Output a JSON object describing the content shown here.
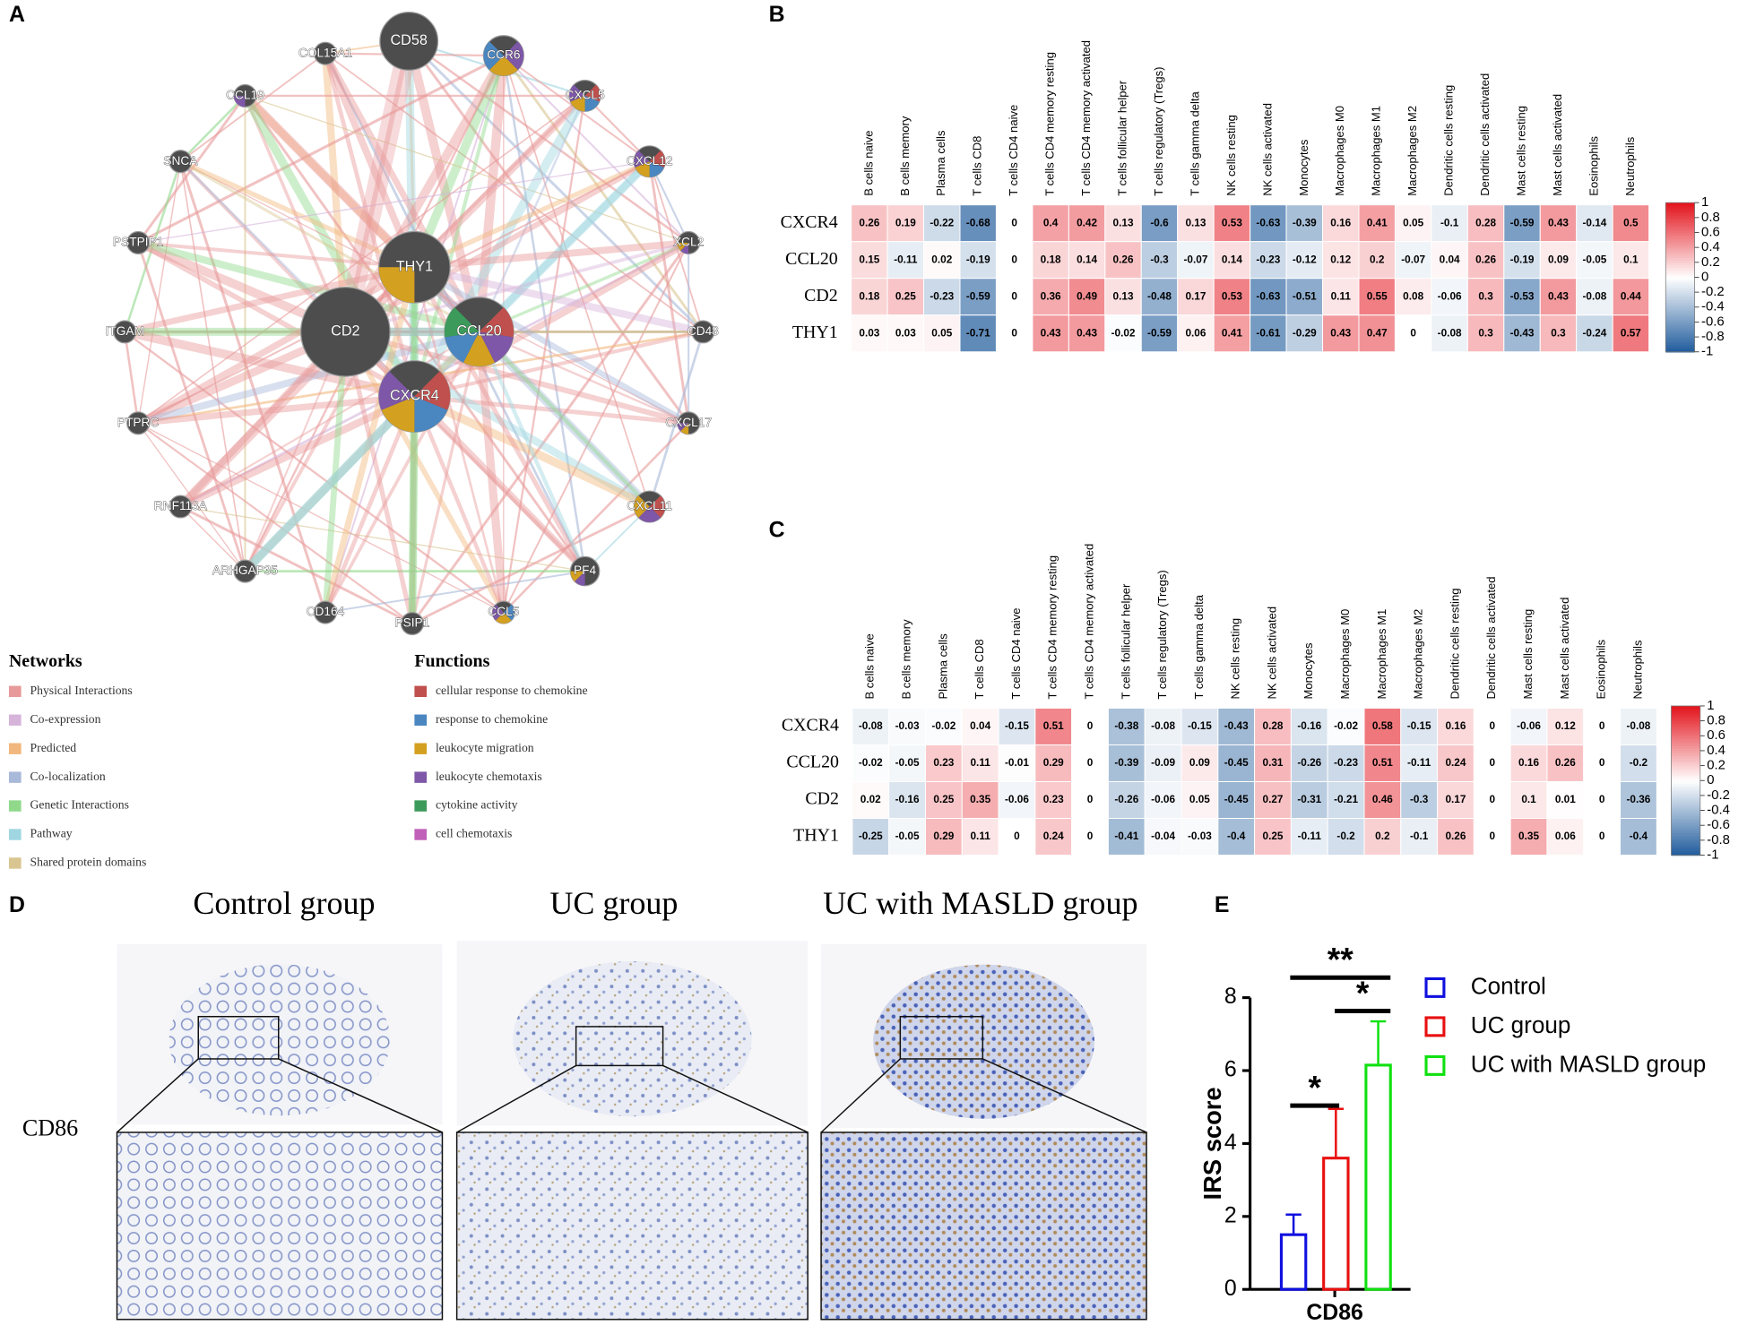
{
  "panel_labels": [
    "A",
    "B",
    "C",
    "D",
    "E"
  ],
  "network": {
    "nodes": [
      "CD58",
      "COL15A1",
      "CCR6",
      "CCL19",
      "CXCL5",
      "SNCA",
      "CXCL12",
      "PSTPIP1",
      "XCL2",
      "ITGAM",
      "CD48",
      "PTPRC",
      "CXCL17",
      "RNF113A",
      "CXCL11",
      "ARHGAP35",
      "PF4",
      "CD164",
      "PSIP1",
      "CCL5",
      "THY1",
      "CD2",
      "CCL20",
      "CXCR4"
    ]
  },
  "legend": {
    "networks_title": "Networks",
    "networks": [
      {
        "name": "Physical Interactions",
        "color": "#e8999a"
      },
      {
        "name": "Co-expression",
        "color": "#d6b4da"
      },
      {
        "name": "Predicted",
        "color": "#f2b77d"
      },
      {
        "name": "Co-localization",
        "color": "#a9b9d9"
      },
      {
        "name": "Genetic Interactions",
        "color": "#90d98b"
      },
      {
        "name": "Pathway",
        "color": "#a0d6e1"
      },
      {
        "name": "Shared protein domains",
        "color": "#d9c590"
      }
    ],
    "functions_title": "Functions",
    "functions": [
      {
        "name": "cellular response to chemokine",
        "color": "#c0504d"
      },
      {
        "name": "response to chemokine",
        "color": "#4a86c0"
      },
      {
        "name": "leukocyte migration",
        "color": "#d4a020"
      },
      {
        "name": "leukocyte chemotaxis",
        "color": "#7e57a8"
      },
      {
        "name": "cytokine activity",
        "color": "#3c9a5a"
      },
      {
        "name": "cell chemotaxis",
        "color": "#c060b8"
      }
    ]
  },
  "panel_d": {
    "titles": [
      "Control group",
      "UC group",
      "UC with MASLD group"
    ],
    "row_label": "CD86"
  },
  "chart_data": [
    {
      "type": "heatmap",
      "categories": [
        "B cells naive",
        "B cells memory",
        "Plasma cells",
        "T cells CD8",
        "T cells CD4 naive",
        "T cells CD4 memory resting",
        "T cells CD4 memory activated",
        "T cells follicular helper",
        "T cells regulatory (Tregs)",
        "T cells gamma delta",
        "NK cells resting",
        "NK cells activated",
        "Monocytes",
        "Macrophages M0",
        "Macrophages M1",
        "Macrophages M2",
        "Dendritic cells resting",
        "Dendritic cells activated",
        "Mast cells resting",
        "Mast cells activated",
        "Eosinophils",
        "Neutrophils"
      ],
      "rows": [
        "CXCR4",
        "CCL20",
        "CD2",
        "THY1"
      ],
      "values": [
        [
          0.26,
          0.19,
          -0.22,
          -0.68,
          0,
          0.4,
          0.42,
          0.13,
          -0.6,
          0.13,
          0.53,
          -0.63,
          -0.39,
          0.16,
          0.41,
          0.05,
          -0.1,
          0.28,
          -0.59,
          0.43,
          -0.14,
          0.5
        ],
        [
          0.15,
          -0.11,
          0.02,
          -0.19,
          0,
          0.18,
          0.14,
          0.26,
          -0.3,
          -0.07,
          0.14,
          -0.23,
          -0.12,
          0.12,
          0.2,
          -0.07,
          0.04,
          0.26,
          -0.19,
          0.09,
          -0.05,
          0.1
        ],
        [
          0.18,
          0.25,
          -0.23,
          -0.59,
          0,
          0.36,
          0.49,
          0.13,
          -0.48,
          0.17,
          0.53,
          -0.63,
          -0.51,
          0.11,
          0.55,
          0.08,
          -0.06,
          0.3,
          -0.53,
          0.43,
          -0.08,
          0.44
        ],
        [
          0.03,
          0.03,
          0.05,
          -0.71,
          0,
          0.43,
          0.43,
          -0.02,
          -0.59,
          0.06,
          0.41,
          -0.61,
          -0.29,
          0.43,
          0.47,
          0,
          -0.08,
          0.3,
          -0.43,
          0.3,
          -0.24,
          0.57
        ]
      ],
      "colorbar_lim": [
        -1,
        1
      ],
      "colorbar_ticks": [
        1,
        0.8,
        0.6,
        0.4,
        0.2,
        0,
        -0.2,
        -0.4,
        -0.6,
        -0.8,
        -1
      ],
      "colors": {
        "low": "#1f5b9c",
        "mid": "#ffffff",
        "high": "#e3141d"
      }
    },
    {
      "type": "heatmap",
      "categories": [
        "B cells naive",
        "B cells memory",
        "Plasma cells",
        "T cells CD8",
        "T cells CD4 naive",
        "T cells CD4 memory resting",
        "T cells CD4 memory activated",
        "T cells follicular helper",
        "T cells regulatory (Tregs)",
        "T cells gamma delta",
        "NK cells resting",
        "NK cells activated",
        "Monocytes",
        "Macrophages M0",
        "Macrophages M1",
        "Macrophages M2",
        "Dendritic cells resting",
        "Dendritic cells activated",
        "Mast cells resting",
        "Mast cells activated",
        "Eosinophils",
        "Neutrophils"
      ],
      "rows": [
        "CXCR4",
        "CCL20",
        "CD2",
        "THY1"
      ],
      "values": [
        [
          -0.08,
          -0.03,
          -0.02,
          0.04,
          -0.15,
          0.51,
          0,
          -0.38,
          -0.08,
          -0.15,
          -0.43,
          0.28,
          -0.16,
          -0.02,
          0.58,
          -0.15,
          0.16,
          0,
          -0.06,
          0.12,
          0,
          -0.08
        ],
        [
          -0.02,
          -0.05,
          0.23,
          0.11,
          -0.01,
          0.29,
          0,
          -0.39,
          -0.09,
          0.09,
          -0.45,
          0.31,
          -0.26,
          -0.23,
          0.51,
          -0.11,
          0.24,
          0,
          0.16,
          0.26,
          0,
          -0.2
        ],
        [
          0.02,
          -0.16,
          0.25,
          0.35,
          -0.06,
          0.23,
          0,
          -0.26,
          -0.06,
          0.05,
          -0.45,
          0.27,
          -0.31,
          -0.21,
          0.46,
          -0.3,
          0.17,
          0,
          0.1,
          0.01,
          0,
          -0.36
        ],
        [
          -0.25,
          -0.05,
          0.29,
          0.11,
          0,
          0.24,
          0,
          -0.41,
          -0.04,
          -0.03,
          -0.4,
          0.25,
          -0.11,
          -0.2,
          0.2,
          -0.1,
          0.26,
          0,
          0.35,
          0.06,
          0,
          -0.4
        ]
      ],
      "colorbar_lim": [
        -1,
        1
      ],
      "colorbar_ticks": [
        1,
        0.8,
        0.6,
        0.4,
        0.2,
        0,
        -0.2,
        -0.4,
        -0.6,
        -0.8,
        -1
      ],
      "colors": {
        "low": "#1f5b9c",
        "mid": "#ffffff",
        "high": "#e3141d"
      }
    },
    {
      "type": "bar",
      "categories": [
        "CD86"
      ],
      "ylabel": "IRS score",
      "series": [
        {
          "name": "Control",
          "color": "#1010e0",
          "values": [
            1.5
          ],
          "errors": [
            0.55
          ]
        },
        {
          "name": "UC group",
          "color": "#e81010",
          "values": [
            3.6
          ],
          "errors": [
            1.35
          ]
        },
        {
          "name": "UC with MASLD group",
          "color": "#10e010",
          "values": [
            6.15
          ],
          "errors": [
            1.2
          ]
        }
      ],
      "ylim": [
        0,
        8
      ],
      "yticks": [
        0,
        2,
        4,
        6,
        8
      ],
      "annotations": [
        "*",
        "*",
        "**"
      ]
    }
  ]
}
